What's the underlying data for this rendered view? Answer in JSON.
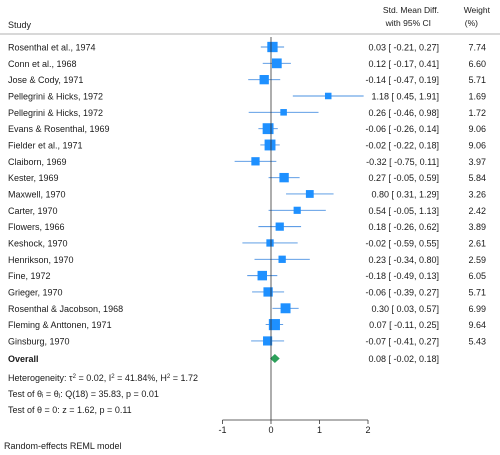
{
  "header": {
    "study_label": "Study",
    "effect_label_line1": "Std. Mean Diff.",
    "effect_label_line2": "with 95% CI",
    "weight_label_line1": "Weight",
    "weight_label_line2": "(%)"
  },
  "colors": {
    "marker": "#1e90ff",
    "line": "#4a90e2",
    "diamond": "#2ca05a",
    "text": "#1a1a1a",
    "axis": "#333333"
  },
  "chart_data": {
    "type": "forest",
    "x_ticks": [
      -1,
      0,
      1,
      2
    ],
    "xlim": [
      -1,
      2
    ],
    "null_line_at": 0,
    "studies": [
      {
        "name": "Rosenthal et al., 1974",
        "est": 0.03,
        "lo": -0.21,
        "hi": 0.27,
        "ci_text": "0.03 [ -0.21,  0.27]",
        "weight": "7.74"
      },
      {
        "name": "Conn et al., 1968",
        "est": 0.12,
        "lo": -0.17,
        "hi": 0.41,
        "ci_text": "0.12 [ -0.17,  0.41]",
        "weight": "6.60"
      },
      {
        "name": "Jose & Cody, 1971",
        "est": -0.14,
        "lo": -0.47,
        "hi": 0.19,
        "ci_text": "-0.14 [ -0.47,  0.19]",
        "weight": "5.71"
      },
      {
        "name": "Pellegrini & Hicks, 1972",
        "est": 1.18,
        "lo": 0.45,
        "hi": 1.91,
        "ci_text": "1.18 [  0.45,  1.91]",
        "weight": "1.69"
      },
      {
        "name": "Pellegrini & Hicks, 1972",
        "est": 0.26,
        "lo": -0.46,
        "hi": 0.98,
        "ci_text": "0.26 [ -0.46,  0.98]",
        "weight": "1.72"
      },
      {
        "name": "Evans & Rosenthal, 1969",
        "est": -0.06,
        "lo": -0.26,
        "hi": 0.14,
        "ci_text": "-0.06 [ -0.26,  0.14]",
        "weight": "9.06"
      },
      {
        "name": "Fielder et al., 1971",
        "est": -0.02,
        "lo": -0.22,
        "hi": 0.18,
        "ci_text": "-0.02 [ -0.22,  0.18]",
        "weight": "9.06"
      },
      {
        "name": "Claiborn, 1969",
        "est": -0.32,
        "lo": -0.75,
        "hi": 0.11,
        "ci_text": "-0.32 [ -0.75,  0.11]",
        "weight": "3.97"
      },
      {
        "name": "Kester, 1969",
        "est": 0.27,
        "lo": -0.05,
        "hi": 0.59,
        "ci_text": "0.27 [ -0.05,  0.59]",
        "weight": "5.84"
      },
      {
        "name": "Maxwell, 1970",
        "est": 0.8,
        "lo": 0.31,
        "hi": 1.29,
        "ci_text": "0.80 [  0.31,  1.29]",
        "weight": "3.26"
      },
      {
        "name": "Carter, 1970",
        "est": 0.54,
        "lo": -0.05,
        "hi": 1.13,
        "ci_text": "0.54 [ -0.05,  1.13]",
        "weight": "2.42"
      },
      {
        "name": "Flowers, 1966",
        "est": 0.18,
        "lo": -0.26,
        "hi": 0.62,
        "ci_text": "0.18 [ -0.26,  0.62]",
        "weight": "3.89"
      },
      {
        "name": "Keshock, 1970",
        "est": -0.02,
        "lo": -0.59,
        "hi": 0.55,
        "ci_text": "-0.02 [ -0.59,  0.55]",
        "weight": "2.61"
      },
      {
        "name": "Henrikson, 1970",
        "est": 0.23,
        "lo": -0.34,
        "hi": 0.8,
        "ci_text": "0.23 [ -0.34,  0.80]",
        "weight": "2.59"
      },
      {
        "name": "Fine, 1972",
        "est": -0.18,
        "lo": -0.49,
        "hi": 0.13,
        "ci_text": "-0.18 [ -0.49,  0.13]",
        "weight": "6.05"
      },
      {
        "name": "Grieger, 1970",
        "est": -0.06,
        "lo": -0.39,
        "hi": 0.27,
        "ci_text": "-0.06 [ -0.39,  0.27]",
        "weight": "5.71"
      },
      {
        "name": "Rosenthal & Jacobson, 1968",
        "est": 0.3,
        "lo": 0.03,
        "hi": 0.57,
        "ci_text": "0.30 [  0.03,  0.57]",
        "weight": "6.99"
      },
      {
        "name": "Fleming & Anttonen, 1971",
        "est": 0.07,
        "lo": -0.11,
        "hi": 0.25,
        "ci_text": "0.07 [ -0.11,  0.25]",
        "weight": "9.64"
      },
      {
        "name": "Ginsburg, 1970",
        "est": -0.07,
        "lo": -0.41,
        "hi": 0.27,
        "ci_text": "-0.07 [ -0.41,  0.27]",
        "weight": "5.43"
      }
    ],
    "overall": {
      "label": "Overall",
      "est": 0.08,
      "lo": -0.02,
      "hi": 0.18,
      "ci_text": "0.08 [ -0.02,  0.18]"
    },
    "heterogeneity": {
      "prefix": "Heterogeneity: ",
      "tau_value": " = 0.02, I",
      "i2_value": " = 41.84%, H",
      "h2_value": " = 1.72"
    },
    "test_theta_i": "Test of θᵢ = θⱼ: Q(18) = 35.83, p = 0.01",
    "test_theta": "Test of θ = 0: z = 1.62, p = 0.11",
    "footnote": "Random-effects REML model"
  }
}
